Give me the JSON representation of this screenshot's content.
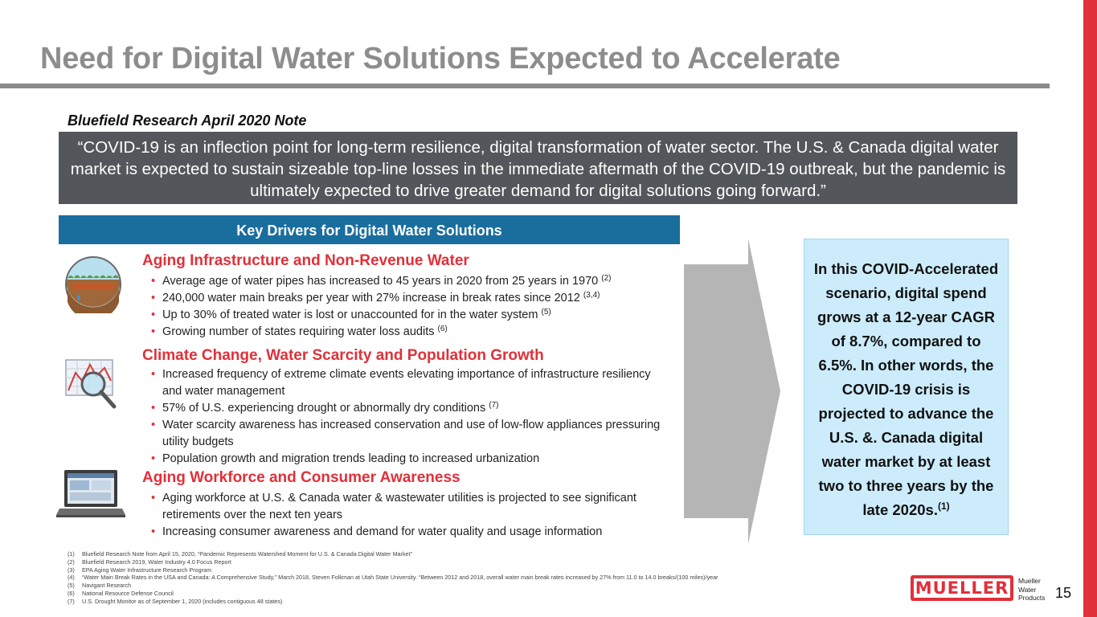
{
  "slide": {
    "title": "Need for Digital Water Solutions Expected to Accelerate",
    "page_number": "15"
  },
  "note": {
    "heading": "Bluefield Research April 2020 Note",
    "quote": "“COVID-19 is an inflection point for long-term resilience, digital transformation of water sector. The U.S. & Canada digital water market is expected to sustain sizeable top-line losses in the immediate aftermath of the COVID-19 outbreak, but the pandemic is ultimately expected to drive greater demand for digital solutions going forward.”"
  },
  "drivers": {
    "header": "Key Drivers for Digital Water Solutions",
    "sections": [
      {
        "title": "Aging Infrastructure and Non-Revenue Water",
        "icon": "water-pipe-icon",
        "bullets": [
          {
            "text": "Average age of water pipes has increased to 45 years in 2020 from 25 years in 1970 ",
            "ref": "(2)"
          },
          {
            "text": "240,000 water main breaks per year with 27% increase in break rates since 2012 ",
            "ref": "(3,4)"
          },
          {
            "text": "Up to 30% of treated water is lost or unaccounted for in the water system ",
            "ref": "(5)"
          },
          {
            "text": "Growing number of states requiring water loss audits ",
            "ref": "(6)"
          }
        ]
      },
      {
        "title": "Climate Change, Water Scarcity and Population Growth",
        "icon": "chart-magnifier-icon",
        "bullets": [
          {
            "text": "Increased frequency of extreme climate events elevating importance of infrastructure resiliency and water management",
            "ref": ""
          },
          {
            "text": "57% of U.S. experiencing drought or abnormally dry conditions ",
            "ref": "(7)"
          },
          {
            "text": "Water scarcity awareness has increased conservation and use of low-flow appliances pressuring utility budgets",
            "ref": ""
          },
          {
            "text": "Population growth and migration trends leading to increased urbanization",
            "ref": ""
          }
        ]
      },
      {
        "title": "Aging Workforce and Consumer Awareness",
        "icon": "laptop-icon",
        "bullets": [
          {
            "text": "Aging workforce at U.S. & Canada water & wastewater utilities is projected to see significant retirements over the next ten years",
            "ref": ""
          },
          {
            "text": "Increasing consumer awareness and demand for water quality and usage information",
            "ref": ""
          }
        ]
      }
    ]
  },
  "callout": {
    "text": "In this COVID-Accelerated scenario, digital spend grows at a 12-year CAGR of 8.7%, compared to 6.5%. In other words, the COVID-19 crisis is projected to advance the U.S. &. Canada digital water market by at least two to three years by the late 2020s.",
    "ref": "(1)"
  },
  "footnotes": [
    {
      "num": "(1)",
      "text": "Bluefield Research Note from April 15, 2020, “Pandemic Represents Watershed Moment for U.S. & Canada Digital Water Market”"
    },
    {
      "num": "(2)",
      "text": "Bluefield Research 2019, Water Industry 4.0 Focus Report"
    },
    {
      "num": "(3)",
      "text": "EPA Aging Water Infrastructure Research Program"
    },
    {
      "num": "(4)",
      "text": "“Water Main Break Rates in the USA and Canada:  A Comprehensive Study,” March 2018, Steven Folkman at Utah State University.  “Between 2012 and 2018, overall water main break rates increased by 27% from 11.0 to 14.0 breaks/(100 miles)/year"
    },
    {
      "num": "(5)",
      "text": "Navigant Research"
    },
    {
      "num": "(6)",
      "text": "National Resource Defense Council"
    },
    {
      "num": "(7)",
      "text": "U.S. Drought Monitor as of September 1, 2020 (includes contiguous 48 states)"
    }
  ],
  "logo": {
    "wordmark": "MUELLER",
    "line1": "Mueller",
    "line2": "Water",
    "line3": "Products"
  },
  "colors": {
    "accent_red": "#e0303a",
    "title_gray": "#8d8d8d",
    "quote_bg": "#53565a",
    "header_blue": "#1a6e9e",
    "callout_bg": "#ccecfb"
  }
}
